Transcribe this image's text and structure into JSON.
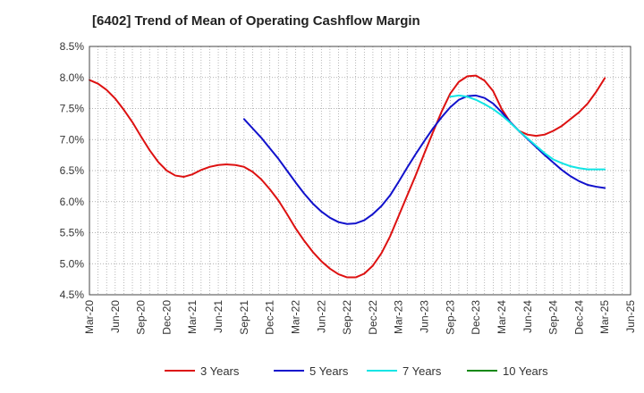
{
  "chart_data": {
    "type": "line",
    "title": "[6402]  Trend of Mean of Operating Cashflow Margin",
    "xlabel": "",
    "ylabel": "",
    "x_ticks": [
      "Mar-20",
      "Jun-20",
      "Sep-20",
      "Dec-20",
      "Mar-21",
      "Jun-21",
      "Sep-21",
      "Dec-21",
      "Mar-22",
      "Jun-22",
      "Sep-22",
      "Dec-22",
      "Mar-23",
      "Jun-23",
      "Sep-23",
      "Dec-23",
      "Mar-24",
      "Jun-24",
      "Sep-24",
      "Dec-24",
      "Mar-25",
      "Jun-25"
    ],
    "y_ticks": [
      "4.5%",
      "5.0%",
      "5.5%",
      "6.0%",
      "6.5%",
      "7.0%",
      "7.5%",
      "8.0%",
      "8.5%"
    ],
    "ylim": [
      4.5,
      8.5
    ],
    "y_unit": "%",
    "grid": true,
    "legend_position": "bottom",
    "series": [
      {
        "name": "3 Years",
        "color": "#dd1111",
        "points": [
          [
            "Mar-20",
            7.96
          ],
          [
            "Apr-20",
            7.9
          ],
          [
            "May-20",
            7.8
          ],
          [
            "Jun-20",
            7.66
          ],
          [
            "Jul-20",
            7.48
          ],
          [
            "Aug-20",
            7.28
          ],
          [
            "Sep-20",
            7.05
          ],
          [
            "Oct-20",
            6.83
          ],
          [
            "Nov-20",
            6.64
          ],
          [
            "Dec-20",
            6.5
          ],
          [
            "Jan-21",
            6.42
          ],
          [
            "Feb-21",
            6.4
          ],
          [
            "Mar-21",
            6.44
          ],
          [
            "Apr-21",
            6.51
          ],
          [
            "May-21",
            6.56
          ],
          [
            "Jun-21",
            6.59
          ],
          [
            "Jul-21",
            6.6
          ],
          [
            "Aug-21",
            6.59
          ],
          [
            "Sep-21",
            6.56
          ],
          [
            "Oct-21",
            6.48
          ],
          [
            "Nov-21",
            6.36
          ],
          [
            "Dec-21",
            6.2
          ],
          [
            "Jan-22",
            6.02
          ],
          [
            "Feb-22",
            5.8
          ],
          [
            "Mar-22",
            5.57
          ],
          [
            "Apr-22",
            5.37
          ],
          [
            "May-22",
            5.19
          ],
          [
            "Jun-22",
            5.04
          ],
          [
            "Jul-22",
            4.92
          ],
          [
            "Aug-22",
            4.83
          ],
          [
            "Sep-22",
            4.78
          ],
          [
            "Oct-22",
            4.78
          ],
          [
            "Nov-22",
            4.84
          ],
          [
            "Dec-22",
            4.97
          ],
          [
            "Jan-23",
            5.17
          ],
          [
            "Feb-23",
            5.44
          ],
          [
            "Mar-23",
            5.77
          ],
          [
            "Apr-23",
            6.1
          ],
          [
            "May-23",
            6.43
          ],
          [
            "Jun-23",
            6.78
          ],
          [
            "Jul-23",
            7.12
          ],
          [
            "Aug-23",
            7.45
          ],
          [
            "Sep-23",
            7.74
          ],
          [
            "Oct-23",
            7.93
          ],
          [
            "Nov-23",
            8.02
          ],
          [
            "Dec-23",
            8.03
          ],
          [
            "Jan-24",
            7.95
          ],
          [
            "Feb-24",
            7.78
          ],
          [
            "Mar-24",
            7.49
          ],
          [
            "Apr-24",
            7.28
          ],
          [
            "May-24",
            7.14
          ],
          [
            "Jun-24",
            7.08
          ],
          [
            "Jul-24",
            7.06
          ],
          [
            "Aug-24",
            7.08
          ],
          [
            "Sep-24",
            7.14
          ],
          [
            "Oct-24",
            7.22
          ],
          [
            "Nov-24",
            7.33
          ],
          [
            "Dec-24",
            7.44
          ],
          [
            "Jan-25",
            7.58
          ],
          [
            "Feb-25",
            7.77
          ],
          [
            "Mar-25",
            7.99
          ]
        ]
      },
      {
        "name": "5 Years",
        "color": "#1111cc",
        "points": [
          [
            "Sep-21",
            7.33
          ],
          [
            "Oct-21",
            7.18
          ],
          [
            "Nov-21",
            7.03
          ],
          [
            "Dec-21",
            6.86
          ],
          [
            "Jan-22",
            6.69
          ],
          [
            "Feb-22",
            6.5
          ],
          [
            "Mar-22",
            6.31
          ],
          [
            "Apr-22",
            6.13
          ],
          [
            "May-22",
            5.97
          ],
          [
            "Jun-22",
            5.84
          ],
          [
            "Jul-22",
            5.74
          ],
          [
            "Aug-22",
            5.67
          ],
          [
            "Sep-22",
            5.64
          ],
          [
            "Oct-22",
            5.65
          ],
          [
            "Nov-22",
            5.7
          ],
          [
            "Dec-22",
            5.8
          ],
          [
            "Jan-23",
            5.93
          ],
          [
            "Feb-23",
            6.1
          ],
          [
            "Mar-23",
            6.32
          ],
          [
            "Apr-23",
            6.55
          ],
          [
            "May-23",
            6.77
          ],
          [
            "Jun-23",
            6.98
          ],
          [
            "Jul-23",
            7.18
          ],
          [
            "Aug-23",
            7.36
          ],
          [
            "Sep-23",
            7.52
          ],
          [
            "Oct-23",
            7.64
          ],
          [
            "Nov-23",
            7.7
          ],
          [
            "Dec-23",
            7.71
          ],
          [
            "Jan-24",
            7.67
          ],
          [
            "Feb-24",
            7.58
          ],
          [
            "Mar-24",
            7.44
          ],
          [
            "Apr-24",
            7.28
          ],
          [
            "May-24",
            7.14
          ],
          [
            "Jun-24",
            7.01
          ],
          [
            "Jul-24",
            6.88
          ],
          [
            "Aug-24",
            6.75
          ],
          [
            "Sep-24",
            6.63
          ],
          [
            "Oct-24",
            6.51
          ],
          [
            "Nov-24",
            6.41
          ],
          [
            "Dec-24",
            6.33
          ],
          [
            "Jan-25",
            6.27
          ],
          [
            "Feb-25",
            6.24
          ],
          [
            "Mar-25",
            6.22
          ]
        ]
      },
      {
        "name": "7 Years",
        "color": "#11e5e5",
        "points": [
          [
            "Sep-23",
            7.69
          ],
          [
            "Oct-23",
            7.71
          ],
          [
            "Nov-23",
            7.69
          ],
          [
            "Dec-23",
            7.64
          ],
          [
            "Jan-24",
            7.57
          ],
          [
            "Feb-24",
            7.49
          ],
          [
            "Mar-24",
            7.39
          ],
          [
            "Apr-24",
            7.27
          ],
          [
            "May-24",
            7.14
          ],
          [
            "Jun-24",
            7.02
          ],
          [
            "Jul-24",
            6.9
          ],
          [
            "Aug-24",
            6.78
          ],
          [
            "Sep-24",
            6.68
          ],
          [
            "Oct-24",
            6.62
          ],
          [
            "Nov-24",
            6.57
          ],
          [
            "Dec-24",
            6.54
          ],
          [
            "Jan-25",
            6.52
          ],
          [
            "Feb-25",
            6.52
          ],
          [
            "Mar-25",
            6.52
          ]
        ]
      },
      {
        "name": "10 Years",
        "color": "#118811",
        "points": []
      }
    ]
  }
}
